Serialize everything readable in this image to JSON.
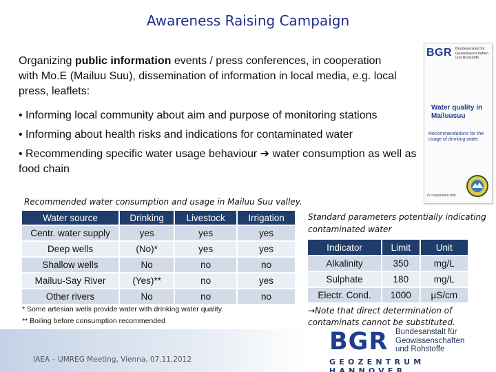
{
  "slide": {
    "title": "Awareness Raising Campaign",
    "intro": {
      "pre": "Organizing ",
      "bold": "public information",
      "post": " events / press conferences, in cooperation with Mo.E (Mailuu Suu), dissemination of information in local media, e.g. local press, leaflets:"
    },
    "bullets": [
      "• Informing local community about aim and purpose of monitoring stations",
      "• Informing about health risks and indications for contaminated water",
      "• Recommending specific water usage  behaviour  water consumption as well as food chain"
    ],
    "arrow": "➔",
    "bullet3_pre": "• Recommending specific water usage  behaviour ",
    "bullet3_post": " water consumption as well as food chain"
  },
  "leaflet": {
    "logo": "BGR",
    "logo_text": "Bundesanstalt für Geowissenschaften und Rohstoffe",
    "title": "Water quality in Mailuusuu",
    "subtitle": "Recommendations for the usage of drinking water",
    "coop": "in cooperation with"
  },
  "usage_table": {
    "caption": "Recommended water consumption and usage in Mailuu Suu valley.",
    "headers": [
      "Water source",
      "Drinking",
      "Livestock",
      "Irrigation"
    ],
    "rows": [
      [
        "Centr. water supply",
        "yes",
        "yes",
        "yes"
      ],
      [
        "Deep wells",
        "(No)*",
        "yes",
        "yes"
      ],
      [
        "Shallow wells",
        "No",
        "no",
        "no"
      ],
      [
        "Mailuu-Say River",
        "(Yes)**",
        "no",
        "yes"
      ],
      [
        "Other rivers",
        "No",
        "no",
        "no"
      ]
    ],
    "notes": [
      "* Some artesian wells provide water with drinking water quality.",
      "** Boiling before consumption recommended"
    ]
  },
  "param_table": {
    "caption": "Standard parameters potentially indicating contaminated water",
    "headers": [
      "Indicator",
      "Limit",
      "Unit"
    ],
    "rows": [
      [
        "Alkalinity",
        "350",
        "mg/L"
      ],
      [
        "Sulphate",
        "180",
        "mg/L"
      ],
      [
        "Electr. Cond.",
        "1000",
        "µS/cm"
      ]
    ],
    "note": "→Note that direct determination of contaminats cannot be substituted."
  },
  "footer": {
    "meeting": "IAEA – UMREG Meeting, Vienna, 07.11.2012",
    "logo": "BGR",
    "org_name_lines": [
      "Bundesanstalt für",
      "Geowissenschaften",
      "und Rohstoffe"
    ],
    "geozentrum": "GEOZENTRUM HANNOVER"
  },
  "colors": {
    "title": "#1f2f86",
    "table_header": "#1f3d6b",
    "row_odd": "#d3dbe8",
    "row_even": "#eaeef5"
  }
}
